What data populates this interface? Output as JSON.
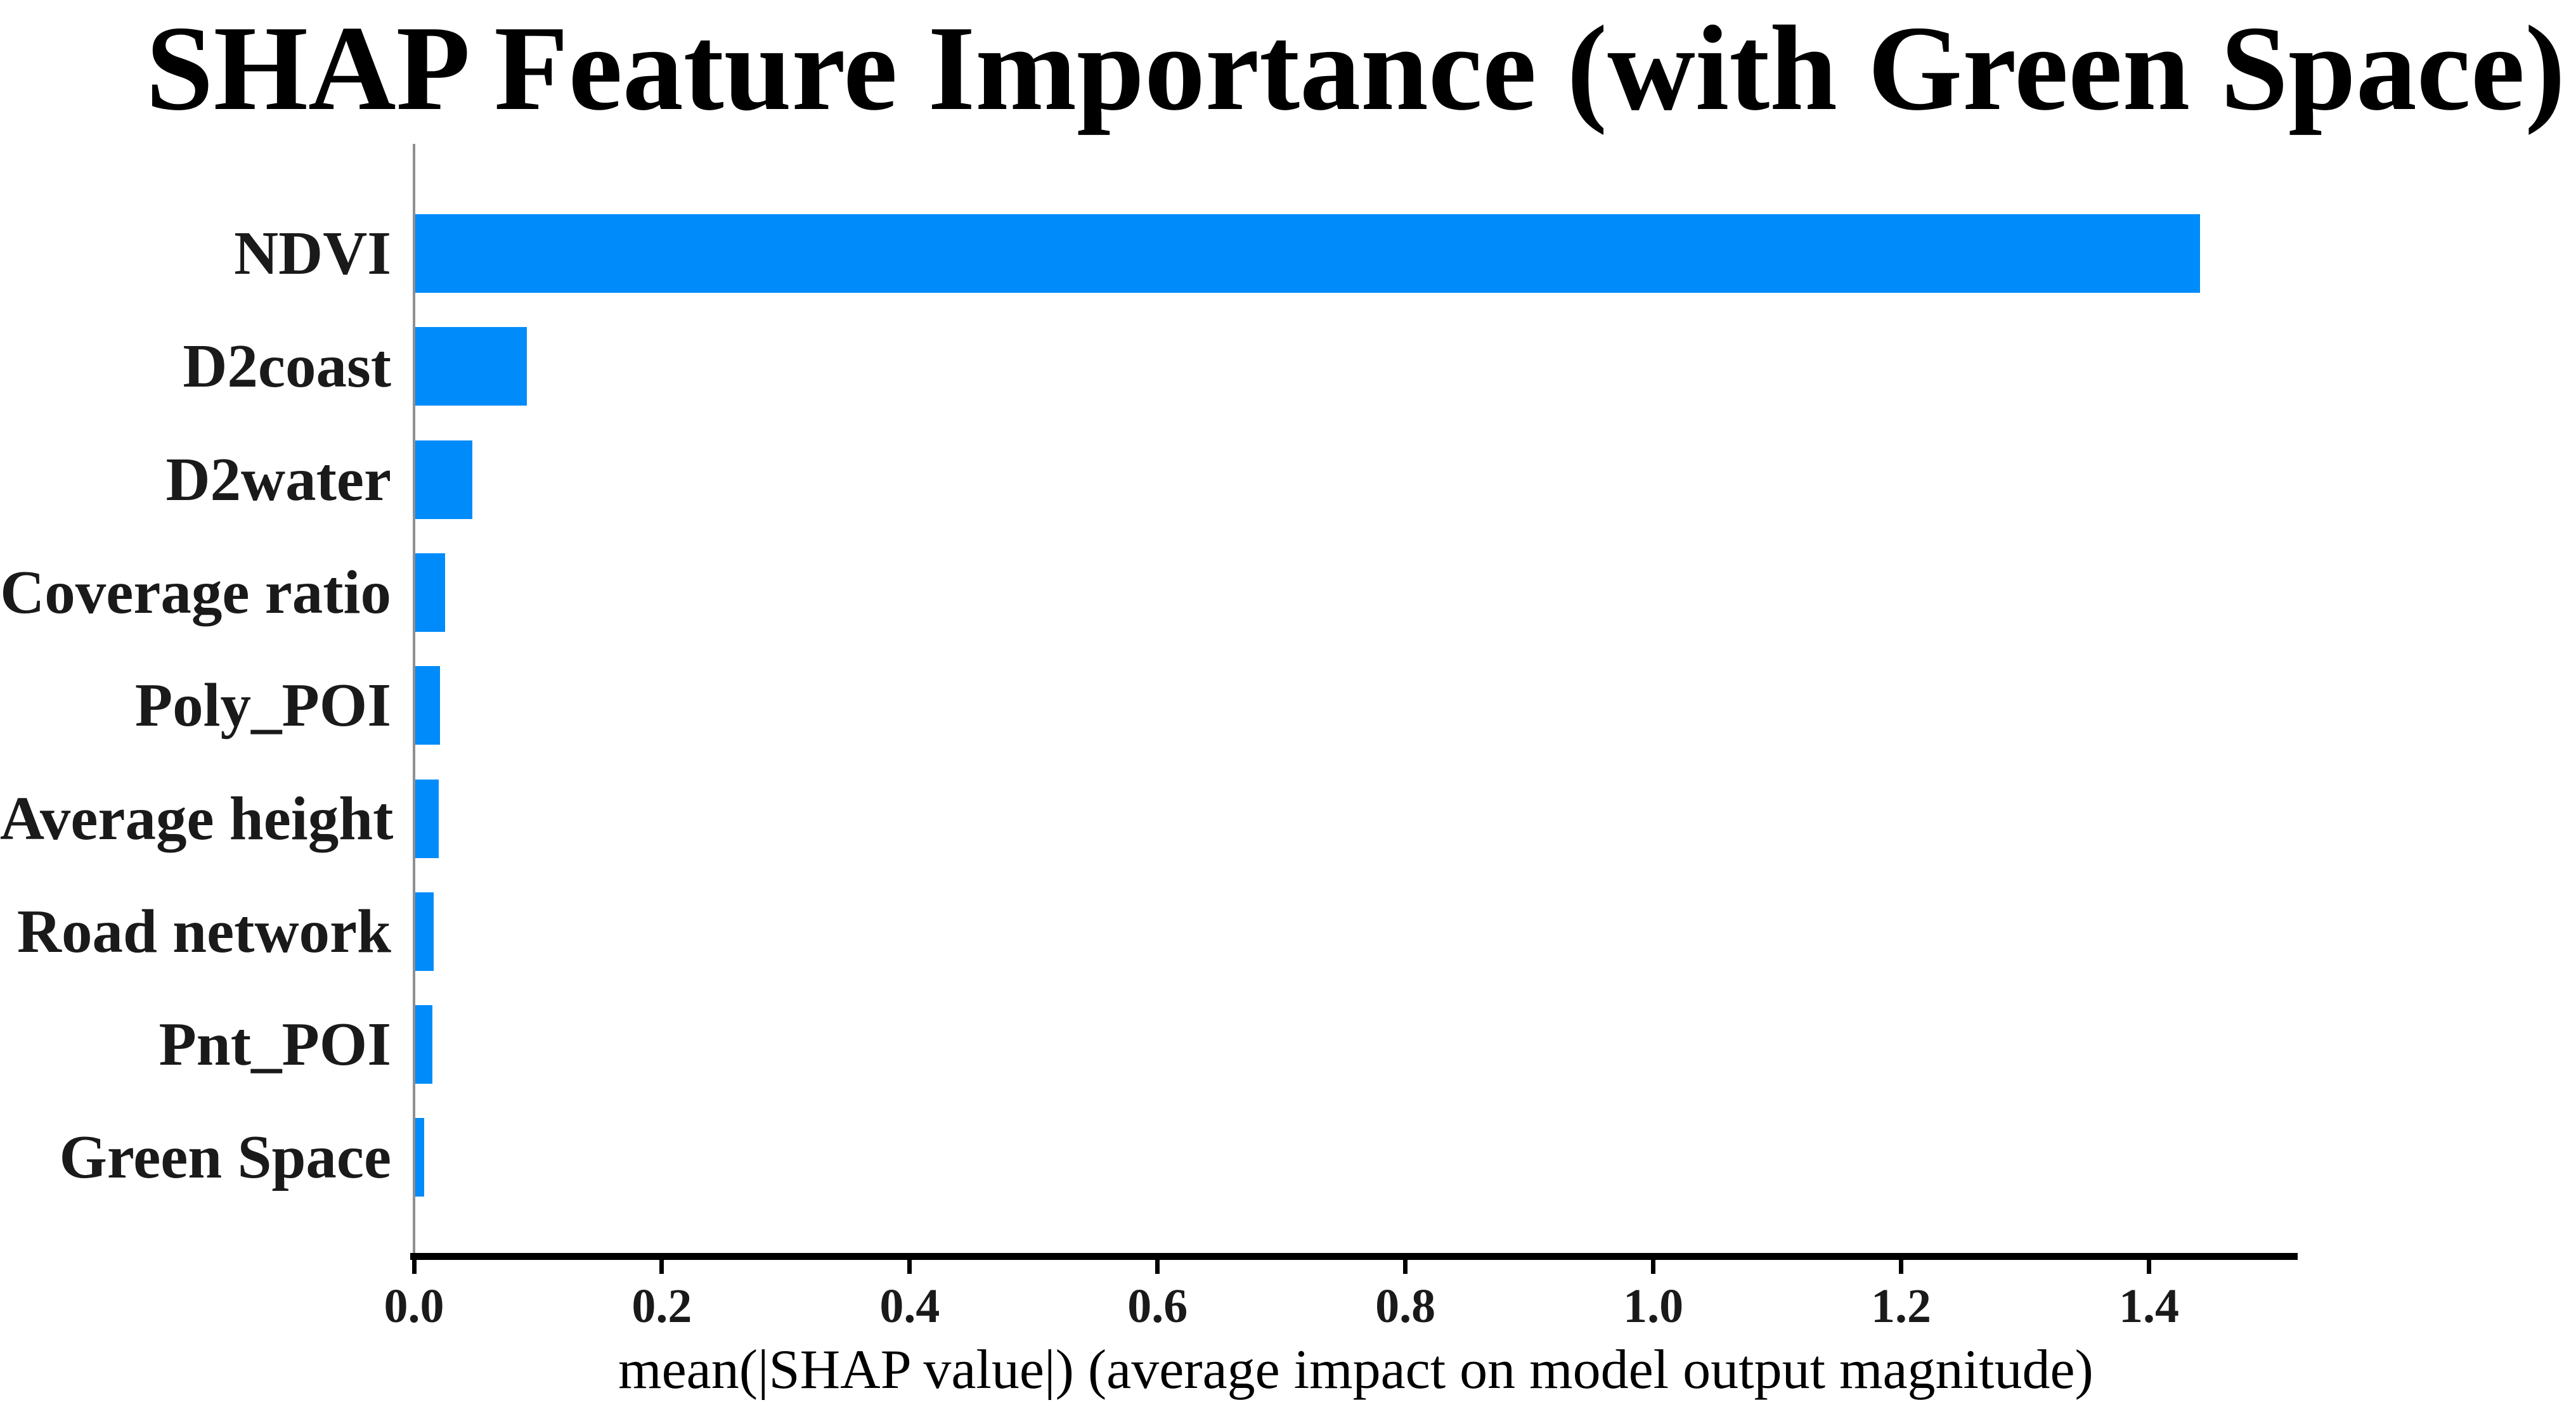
{
  "chart_data": {
    "type": "bar",
    "orientation": "horizontal",
    "title": "SHAP Feature Importance (with Green Space)",
    "xlabel": "mean(|SHAP value|) (average impact on model output magnitude)",
    "categories": [
      "NDVI",
      "D2coast",
      "D2water",
      "Coverage ratio",
      "Poly_POI",
      "Average height",
      "Road network",
      "Pnt_POI",
      "Green Space"
    ],
    "values": [
      1.44,
      0.09,
      0.046,
      0.024,
      0.02,
      0.019,
      0.015,
      0.014,
      0.007
    ],
    "xlim": [
      0,
      1.52
    ],
    "xticks": [
      "0.0",
      "0.2",
      "0.4",
      "0.6",
      "0.8",
      "1.0",
      "1.2",
      "1.4"
    ],
    "grid": false,
    "legend": null,
    "bar_color": "#008BFB",
    "axis_line_color": "#000000",
    "left_spine_color": "#8f8f8f"
  }
}
